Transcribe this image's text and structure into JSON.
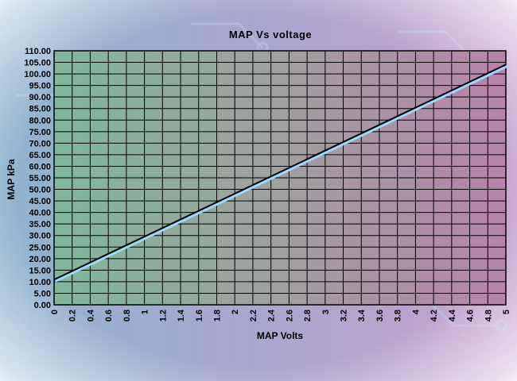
{
  "chart_data": {
    "type": "line",
    "title": "MAP Vs voltage",
    "xlabel": "MAP Volts",
    "ylabel": "MAP kPa",
    "xlim": [
      0,
      5
    ],
    "ylim": [
      0,
      110
    ],
    "x_ticks": [
      "0",
      "0.2",
      "0.4",
      "0.6",
      "0.8",
      "1",
      "1.2",
      "1.4",
      "1.6",
      "1.8",
      "2",
      "2.2",
      "2.4",
      "2.6",
      "2.8",
      "3",
      "3.2",
      "3.4",
      "3.6",
      "3.8",
      "4",
      "4.2",
      "4.4",
      "4.6",
      "4.8",
      "5"
    ],
    "y_ticks": [
      "0.00",
      "5.00",
      "10.00",
      "15.00",
      "20.00",
      "25.00",
      "30.00",
      "35.00",
      "40.00",
      "45.00",
      "50.00",
      "55.00",
      "60.00",
      "65.00",
      "70.00",
      "75.00",
      "80.00",
      "85.00",
      "90.00",
      "95.00",
      "100.00",
      "105.00",
      "110.00"
    ],
    "grid": true,
    "series": [
      {
        "x": [
          0,
          5
        ],
        "y": [
          10.9,
          104.0
        ],
        "color": "#000000"
      }
    ]
  },
  "colors": {
    "plot_left": "#7fb89a",
    "plot_right": "#b783a9",
    "gridline": "#000000",
    "series_shadow": "#9fd9ff",
    "frame_edge": "#8f9ccf"
  }
}
